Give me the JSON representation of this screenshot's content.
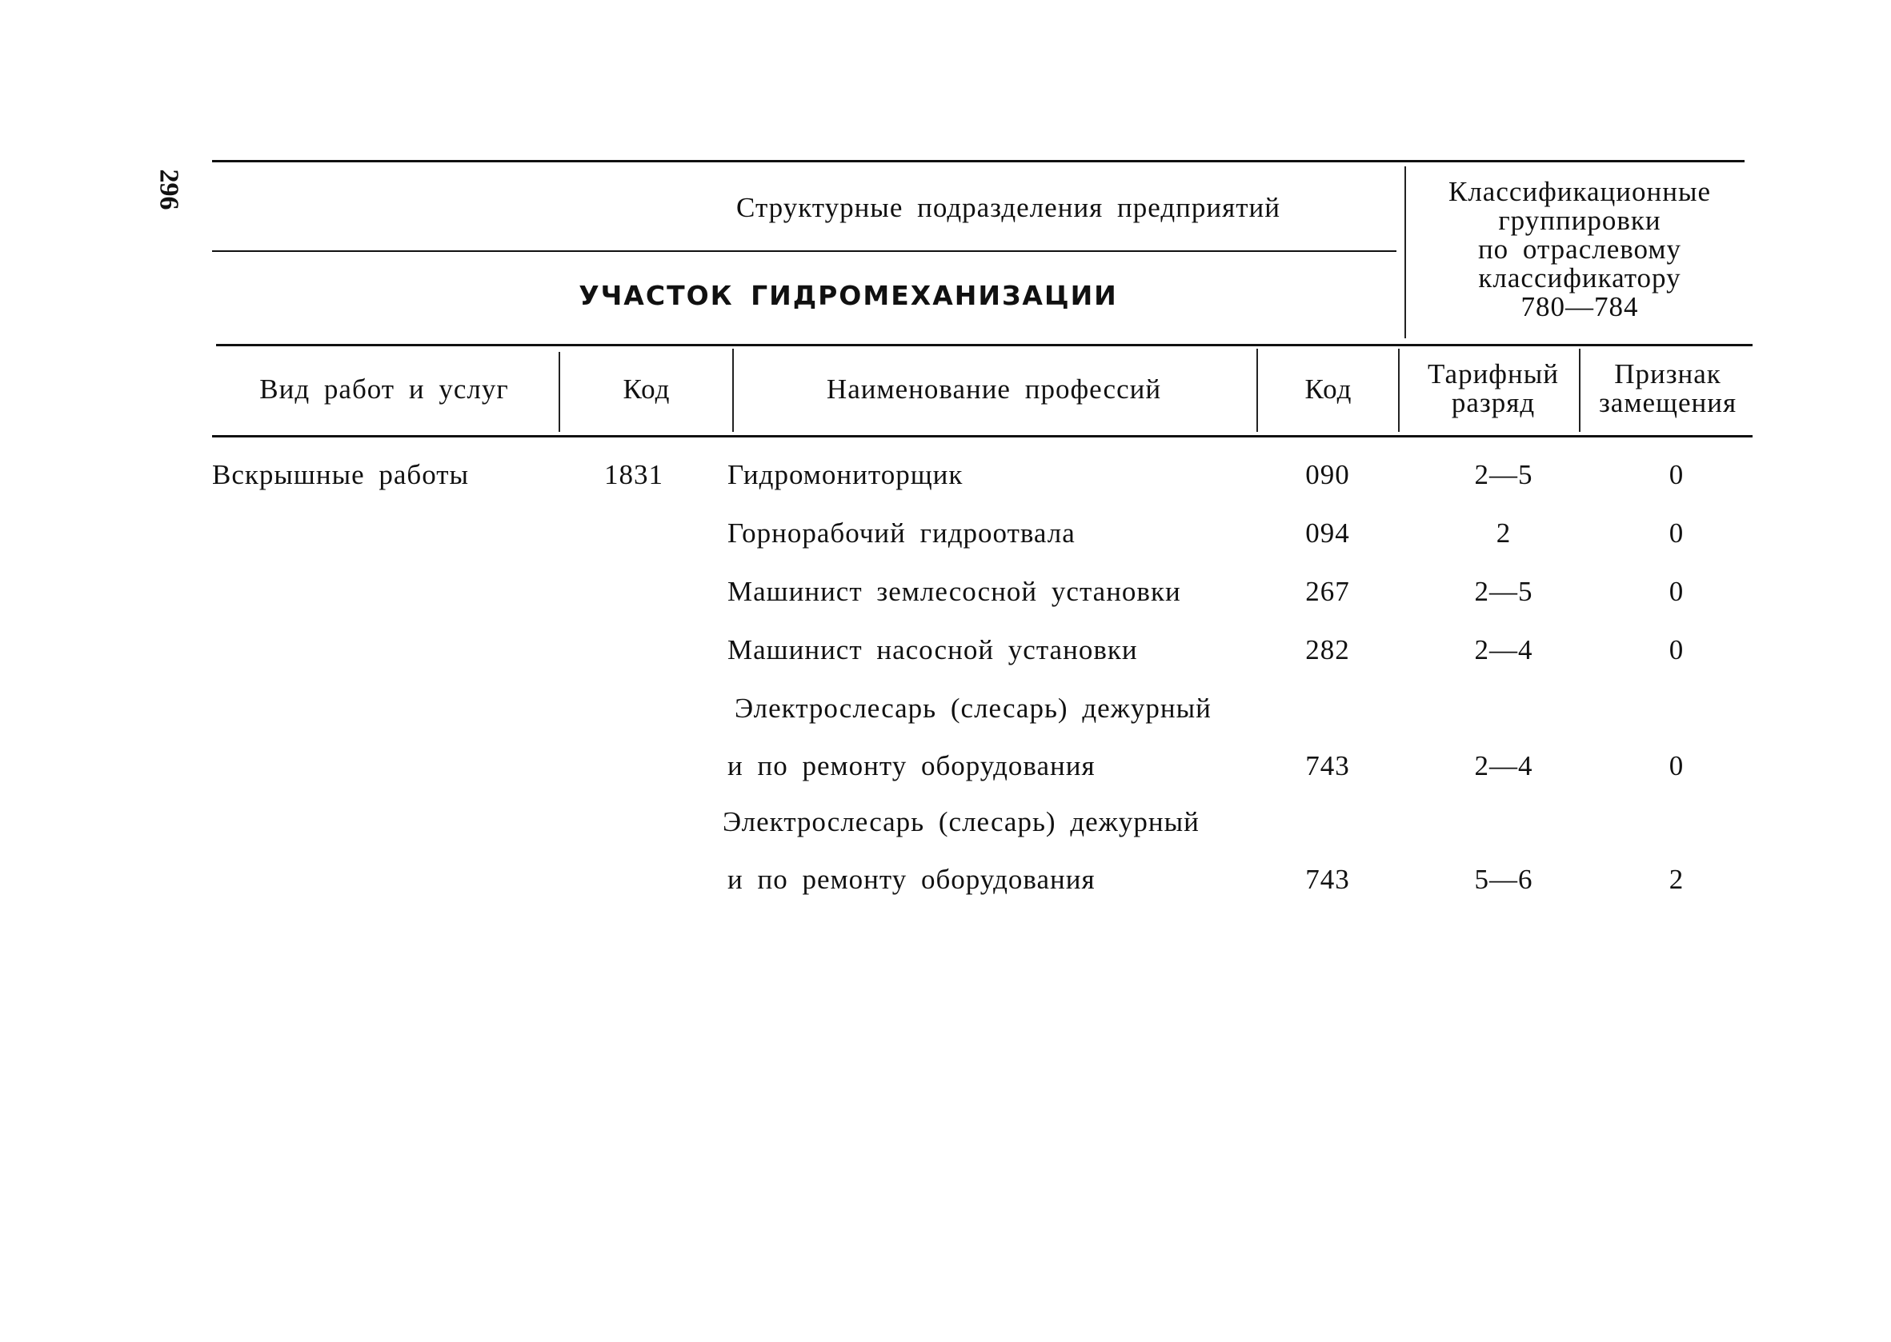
{
  "page_number": "296",
  "header": {
    "structural_divisions": "Структурные подразделения предприятий",
    "section_title": "УЧАСТОК ГИДРОМЕХАНИЗАЦИИ",
    "classification": [
      "Классификационные",
      "группировки",
      "по отраслевому",
      "классификатору",
      "780—784"
    ]
  },
  "columns": {
    "work_type": "Вид работ и услуг",
    "work_code": "Код",
    "profession": "Наименование профессий",
    "profession_code": "Код",
    "tariff": [
      "Тарифный",
      "разряд"
    ],
    "replacement": [
      "Признак",
      "замещения"
    ]
  },
  "work": {
    "type": "Вскрышные работы",
    "code": "1831"
  },
  "rows": [
    {
      "name": [
        "Гидромониторщик"
      ],
      "code": "090",
      "tariff": "2—5",
      "sign": "0"
    },
    {
      "name": [
        "Горнорабочий гидроотвала"
      ],
      "code": "094",
      "tariff": "2",
      "sign": "0"
    },
    {
      "name": [
        "Машинист землесосной установки"
      ],
      "code": "267",
      "tariff": "2—5",
      "sign": "0"
    },
    {
      "name": [
        "Машинист насосной установки"
      ],
      "code": "282",
      "tariff": "2—4",
      "sign": "0"
    },
    {
      "name": [
        "Электрослесарь (слесарь) дежурный",
        "и по ремонту оборудования"
      ],
      "code": "743",
      "tariff": "2—4",
      "sign": "0"
    },
    {
      "name": [
        "Электрослесарь (слесарь) дежурный",
        "и по ремонту оборудования"
      ],
      "code": "743",
      "tariff": "5—6",
      "sign": "2"
    }
  ]
}
